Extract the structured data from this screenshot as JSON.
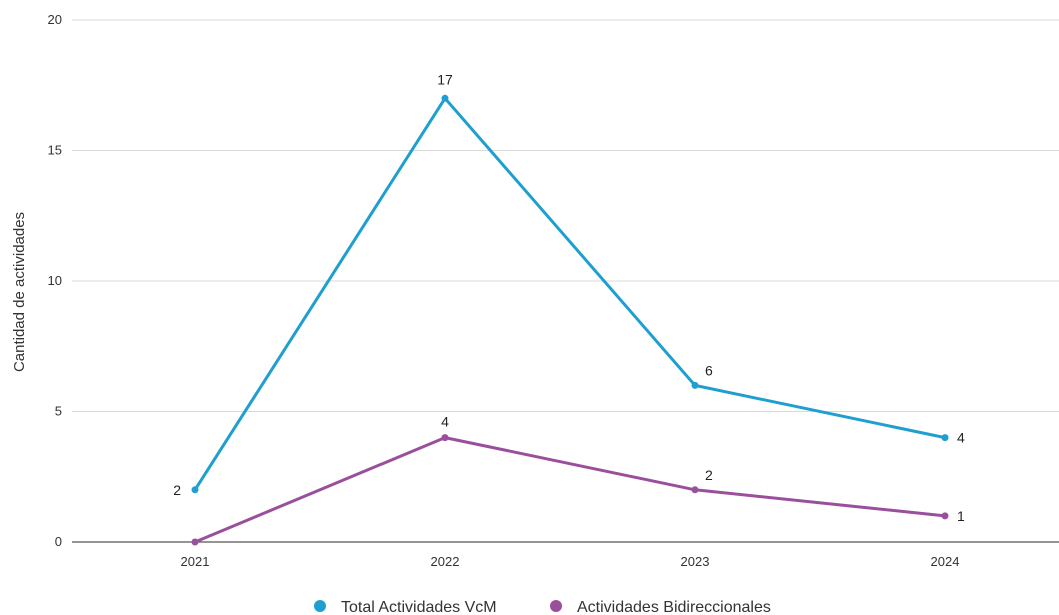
{
  "chart_data": {
    "type": "line",
    "categories": [
      "2021",
      "2022",
      "2023",
      "2024"
    ],
    "ylabel": "Cantidad de actividades",
    "ylim": [
      0,
      20
    ],
    "yticks": [
      0,
      5,
      10,
      15,
      20
    ],
    "grid": true,
    "legend_position": "bottom",
    "series": [
      {
        "name": "Total Actividades VcM",
        "color": "#1e9fd0",
        "values": [
          2,
          17,
          6,
          4
        ],
        "labels": [
          "2",
          "17",
          "6",
          "4"
        ]
      },
      {
        "name": "Actividades Bidireccionales",
        "color": "#9a4f9c",
        "values": [
          0,
          4,
          2,
          1
        ],
        "labels": [
          "",
          "4",
          "2",
          "1"
        ]
      }
    ]
  }
}
